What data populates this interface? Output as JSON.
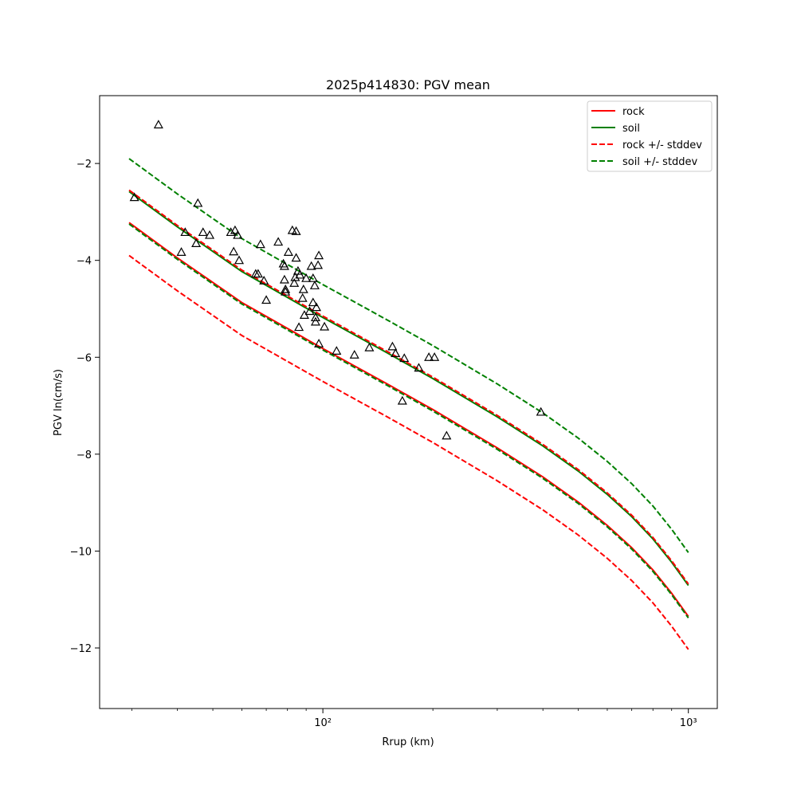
{
  "chart_data": {
    "type": "scatter",
    "title": "2025p414830: PGV mean",
    "xlabel": "Rrup (km)",
    "ylabel": "PGV ln(cm/s)",
    "xscale": "log",
    "xlim": [
      24.5,
      1200
    ],
    "ylim": [
      -13.25,
      -0.6
    ],
    "xticks": [
      {
        "value": 100,
        "label": "10²"
      },
      {
        "value": 1000,
        "label": "10³"
      }
    ],
    "yticks": [
      {
        "value": -2,
        "label": "−2"
      },
      {
        "value": -4,
        "label": "−4"
      },
      {
        "value": -6,
        "label": "−6"
      },
      {
        "value": -8,
        "label": "−8"
      },
      {
        "value": -10,
        "label": "−10"
      },
      {
        "value": -12,
        "label": "−12"
      }
    ],
    "legend_position": "top-right",
    "series": [
      {
        "name": "rock",
        "style": "solid",
        "color": "#ff0000",
        "x": [
          29.5,
          40,
          60,
          100,
          150,
          200,
          300,
          400,
          500,
          600,
          700,
          800,
          900,
          1000
        ],
        "y": [
          -3.22,
          -3.95,
          -4.87,
          -5.82,
          -6.55,
          -7.08,
          -7.87,
          -8.47,
          -8.99,
          -9.47,
          -9.93,
          -10.39,
          -10.87,
          -11.35
        ]
      },
      {
        "name": "soil",
        "style": "solid",
        "color": "#008000",
        "x": [
          29.5,
          40,
          60,
          100,
          150,
          200,
          300,
          400,
          500,
          600,
          700,
          800,
          900,
          1000
        ],
        "y": [
          -2.58,
          -3.31,
          -4.23,
          -5.18,
          -5.91,
          -6.44,
          -7.23,
          -7.83,
          -8.35,
          -8.83,
          -9.29,
          -9.75,
          -10.23,
          -10.71
        ]
      },
      {
        "name": "rock +/- stddev",
        "style": "dashed",
        "color": "#ff0000",
        "lines": [
          {
            "x": [
              29.5,
              40,
              60,
              100,
              150,
              200,
              300,
              400,
              500,
              600,
              700,
              800,
              900,
              1000
            ],
            "y": [
              -2.55,
              -3.28,
              -4.2,
              -5.15,
              -5.88,
              -6.41,
              -7.2,
              -7.8,
              -8.32,
              -8.8,
              -9.26,
              -9.72,
              -10.2,
              -10.68
            ]
          },
          {
            "x": [
              29.5,
              40,
              60,
              100,
              150,
              200,
              300,
              400,
              500,
              600,
              700,
              800,
              900,
              1000
            ],
            "y": [
              -3.9,
              -4.63,
              -5.55,
              -6.5,
              -7.23,
              -7.76,
              -8.55,
              -9.15,
              -9.67,
              -10.15,
              -10.61,
              -11.07,
              -11.55,
              -12.03
            ]
          }
        ]
      },
      {
        "name": "soil +/- stddev",
        "style": "dashed",
        "color": "#008000",
        "lines": [
          {
            "x": [
              29.5,
              40,
              60,
              100,
              150,
              200,
              300,
              400,
              500,
              600,
              700,
              800,
              900,
              1000
            ],
            "y": [
              -1.9,
              -2.63,
              -3.55,
              -4.5,
              -5.23,
              -5.76,
              -6.55,
              -7.15,
              -7.67,
              -8.15,
              -8.61,
              -9.07,
              -9.55,
              -10.03
            ]
          },
          {
            "x": [
              29.5,
              40,
              60,
              100,
              150,
              200,
              300,
              400,
              500,
              600,
              700,
              800,
              900,
              1000
            ],
            "y": [
              -3.25,
              -3.98,
              -4.9,
              -5.85,
              -6.58,
              -7.11,
              -7.9,
              -8.5,
              -9.02,
              -9.5,
              -9.96,
              -10.42,
              -10.9,
              -11.38
            ]
          }
        ]
      }
    ],
    "observations": {
      "marker": "triangle-open",
      "color": "#000000",
      "points": [
        [
          30.5,
          -2.7
        ],
        [
          35.5,
          -1.2
        ],
        [
          41,
          -3.83
        ],
        [
          42,
          -3.42
        ],
        [
          45,
          -3.65
        ],
        [
          45.5,
          -2.82
        ],
        [
          47,
          -3.42
        ],
        [
          49,
          -3.48
        ],
        [
          56,
          -3.42
        ],
        [
          57,
          -3.82
        ],
        [
          57.5,
          -3.38
        ],
        [
          58.5,
          -3.48
        ],
        [
          59,
          -4.0
        ],
        [
          65.5,
          -4.28
        ],
        [
          66.5,
          -4.28
        ],
        [
          67.5,
          -3.67
        ],
        [
          69,
          -4.42
        ],
        [
          70,
          -4.82
        ],
        [
          75.5,
          -3.62
        ],
        [
          78,
          -4.07
        ],
        [
          78.5,
          -4.12
        ],
        [
          78.5,
          -4.4
        ],
        [
          79,
          -4.65
        ],
        [
          79,
          -4.6
        ],
        [
          80.5,
          -3.83
        ],
        [
          82.5,
          -3.38
        ],
        [
          83.5,
          -4.47
        ],
        [
          84,
          -4.35
        ],
        [
          84.5,
          -3.4
        ],
        [
          84.5,
          -3.95
        ],
        [
          85.5,
          -4.22
        ],
        [
          86,
          -5.38
        ],
        [
          86.5,
          -4.3
        ],
        [
          88,
          -4.78
        ],
        [
          88.5,
          -4.6
        ],
        [
          89,
          -5.13
        ],
        [
          90,
          -4.37
        ],
        [
          92,
          -5.05
        ],
        [
          93,
          -4.12
        ],
        [
          94,
          -4.87
        ],
        [
          94,
          -4.37
        ],
        [
          95,
          -4.52
        ],
        [
          95.5,
          -5.18
        ],
        [
          95.5,
          -5.27
        ],
        [
          96,
          -4.97
        ],
        [
          97,
          -4.1
        ],
        [
          97.5,
          -3.9
        ],
        [
          97.5,
          -5.72
        ],
        [
          101,
          -5.37
        ],
        [
          109,
          -5.87
        ],
        [
          122,
          -5.95
        ],
        [
          134,
          -5.8
        ],
        [
          155,
          -5.78
        ],
        [
          158,
          -5.92
        ],
        [
          165,
          -6.9
        ],
        [
          167,
          -6.02
        ],
        [
          183,
          -6.22
        ],
        [
          195,
          -6.0
        ],
        [
          202,
          -6.0
        ],
        [
          218,
          -7.62
        ],
        [
          395,
          -7.13
        ]
      ]
    }
  }
}
